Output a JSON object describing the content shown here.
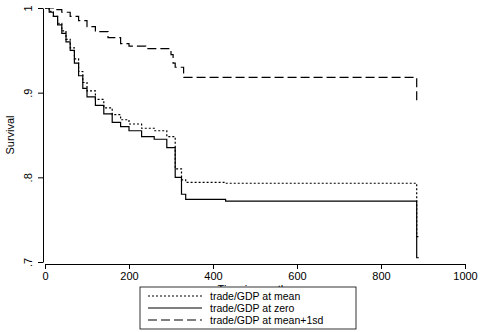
{
  "chart_data": {
    "type": "step",
    "x_label": "Time in months",
    "y_label": "Survival",
    "xlim": [
      0,
      1000
    ],
    "xticks": [
      0,
      200,
      400,
      600,
      800,
      1000
    ],
    "ylim": [
      0.7,
      1
    ],
    "yticks": [
      {
        "value": 0.7,
        "label": ".7"
      },
      {
        "value": 0.8,
        "label": ".8"
      },
      {
        "value": 0.9,
        "label": ".9"
      },
      1
    ],
    "grid": false,
    "legend": "bottom",
    "series": [
      {
        "name": "trade/GDP at mean",
        "color": "#000000",
        "line_style": "dotted",
        "x": [
          0,
          10,
          20,
          30,
          40,
          50,
          60,
          70,
          80,
          90,
          100,
          120,
          140,
          160,
          180,
          200,
          230,
          260,
          290,
          305,
          310,
          325,
          335,
          430,
          885,
          890
        ],
        "values": [
          1,
          0.996,
          0.99,
          0.982,
          0.973,
          0.963,
          0.953,
          0.94,
          0.925,
          0.912,
          0.902,
          0.892,
          0.882,
          0.874,
          0.868,
          0.863,
          0.858,
          0.855,
          0.848,
          0.848,
          0.81,
          0.797,
          0.794,
          0.793,
          0.73,
          0.73
        ]
      },
      {
        "name": "trade/GDP at zero",
        "color": "#000000",
        "line_style": "solid",
        "x": [
          0,
          10,
          20,
          30,
          40,
          50,
          60,
          70,
          80,
          90,
          100,
          120,
          140,
          160,
          180,
          200,
          230,
          260,
          290,
          305,
          310,
          325,
          335,
          430,
          885,
          890
        ],
        "values": [
          1,
          0.995,
          0.99,
          0.98,
          0.97,
          0.96,
          0.95,
          0.935,
          0.92,
          0.905,
          0.895,
          0.885,
          0.875,
          0.865,
          0.86,
          0.855,
          0.848,
          0.845,
          0.835,
          0.835,
          0.8,
          0.78,
          0.774,
          0.772,
          0.705,
          0.705
        ]
      },
      {
        "name": "trade/GDP at mean+1sd",
        "color": "#000000",
        "line_style": "dashed",
        "x": [
          0,
          20,
          40,
          60,
          80,
          100,
          120,
          150,
          180,
          200,
          240,
          280,
          300,
          305,
          310,
          330,
          885,
          890
        ],
        "values": [
          1,
          0.998,
          0.995,
          0.99,
          0.985,
          0.978,
          0.972,
          0.965,
          0.958,
          0.955,
          0.952,
          0.952,
          0.945,
          0.935,
          0.93,
          0.918,
          0.89,
          0.89
        ]
      }
    ]
  }
}
